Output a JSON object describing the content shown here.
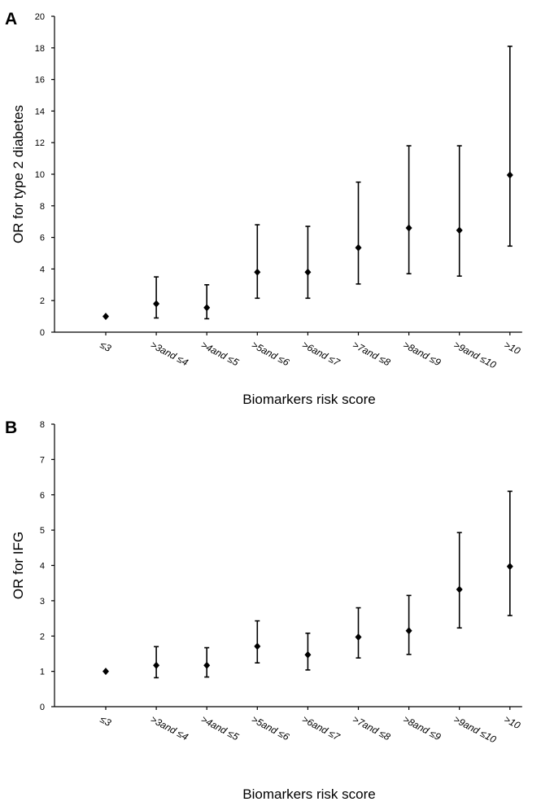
{
  "chart_data": [
    {
      "panel": "A",
      "type": "scatter",
      "error_bars": true,
      "xlabel": "Biomarkers risk score",
      "ylabel": "OR for type 2 diabetes",
      "ylim": [
        0,
        20
      ],
      "yticks": [
        "0",
        "2",
        "4",
        "6",
        "8",
        "10",
        "12",
        "14",
        "16",
        "18",
        "20"
      ],
      "categories": [
        "≤3",
        ">3and ≤4",
        ">4and ≤5",
        ">5and ≤6",
        ">6and ≤7",
        ">7and ≤8",
        ">8and ≤9",
        ">9and ≤10",
        ">10"
      ],
      "values": [
        1.0,
        1.8,
        1.55,
        3.8,
        3.8,
        5.35,
        6.6,
        6.45,
        9.95
      ],
      "lower": [
        1.0,
        0.9,
        0.85,
        2.15,
        2.15,
        3.05,
        3.7,
        3.55,
        5.45
      ],
      "upper": [
        1.0,
        3.5,
        3.0,
        6.8,
        6.7,
        9.5,
        11.8,
        11.8,
        18.1
      ],
      "grid": false,
      "legend": "none"
    },
    {
      "panel": "B",
      "type": "scatter",
      "error_bars": true,
      "xlabel": "Biomarkers risk score",
      "ylabel": "OR for IFG",
      "ylim": [
        0,
        8
      ],
      "yticks": [
        "0",
        "1",
        "2",
        "3",
        "4",
        "5",
        "6",
        "7",
        "8"
      ],
      "categories": [
        "≤3",
        ">3and ≤4",
        ">4and ≤5",
        ">5and ≤6",
        ">6and ≤7",
        ">7and ≤8",
        ">8and ≤9",
        ">9and ≤10",
        ">10"
      ],
      "values": [
        1.0,
        1.17,
        1.17,
        1.71,
        1.47,
        1.97,
        2.15,
        3.32,
        3.97
      ],
      "lower": [
        1.0,
        0.82,
        0.84,
        1.24,
        1.04,
        1.38,
        1.48,
        2.23,
        2.58
      ],
      "upper": [
        1.0,
        1.7,
        1.67,
        2.43,
        2.08,
        2.8,
        3.15,
        4.93,
        6.1
      ],
      "grid": false,
      "legend": "none"
    }
  ]
}
